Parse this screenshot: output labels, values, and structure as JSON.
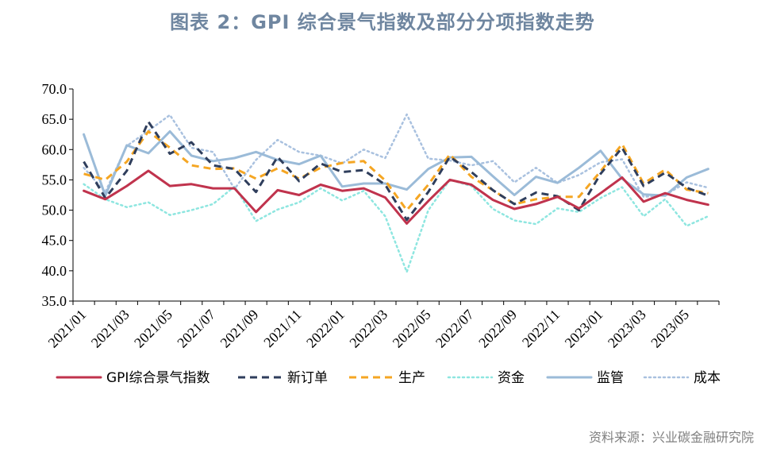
{
  "title": "图表 2：GPI 综合景气指数及部分分项指数走势",
  "source": "资料来源：兴业碳金融研究院",
  "colors": {
    "gpi": "#c0334d",
    "new_orders": "#2f3e5c",
    "production": "#f5a623",
    "capital": "#8ee6e0",
    "supervision": "#9bbbd8",
    "cost": "#a9c1df",
    "axis": "#000000",
    "title": "#6f86a0"
  },
  "chart_data": {
    "type": "line",
    "title": "图表 2：GPI 综合景气指数及部分分项指数走势",
    "xlabel": "",
    "ylabel": "",
    "ylim": [
      35.0,
      70.0
    ],
    "yticks": [
      "35.0",
      "40.0",
      "45.0",
      "50.0",
      "55.0",
      "60.0",
      "65.0",
      "70.0"
    ],
    "xtick_labels": [
      "2021/01",
      "2021/03",
      "2021/05",
      "2021/07",
      "2021/09",
      "2021/11",
      "2022/01",
      "2022/03",
      "2022/05",
      "2022/07",
      "2022/09",
      "2022/11",
      "2023/01",
      "2023/03",
      "2023/05"
    ],
    "x": [
      "2021/01",
      "2021/02",
      "2021/03",
      "2021/04",
      "2021/05",
      "2021/06",
      "2021/07",
      "2021/08",
      "2021/09",
      "2021/10",
      "2021/11",
      "2021/12",
      "2022/01",
      "2022/02",
      "2022/03",
      "2022/04",
      "2022/05",
      "2022/06",
      "2022/07",
      "2022/08",
      "2022/09",
      "2022/10",
      "2022/11",
      "2022/12",
      "2023/01",
      "2023/02",
      "2023/03",
      "2023/04",
      "2023/05",
      "2023/06"
    ],
    "series": [
      {
        "key": "gpi",
        "name": "GPI综合景气指数",
        "style": "solid",
        "values": [
          53.2,
          51.8,
          54.0,
          56.5,
          54.0,
          54.3,
          53.6,
          53.6,
          49.7,
          53.3,
          52.5,
          54.2,
          53.2,
          53.6,
          52.1,
          47.8,
          51.5,
          55.0,
          54.2,
          51.7,
          50.2,
          51.0,
          52.2,
          50.3,
          52.8,
          55.4,
          51.4,
          52.8,
          51.7,
          50.9
        ]
      },
      {
        "key": "new_orders",
        "name": "新订单",
        "style": "dash",
        "values": [
          58.0,
          52.0,
          56.5,
          64.6,
          59.3,
          61.2,
          57.4,
          56.8,
          53.0,
          58.8,
          54.8,
          57.7,
          56.3,
          56.6,
          54.2,
          48.4,
          53.0,
          58.8,
          56.3,
          53.3,
          51.0,
          52.9,
          52.3,
          50.0,
          56.0,
          60.3,
          54.0,
          56.2,
          53.7,
          52.4
        ]
      },
      {
        "key": "production",
        "name": "生产",
        "style": "dash",
        "values": [
          56.0,
          55.0,
          58.0,
          63.0,
          60.3,
          57.4,
          56.8,
          56.9,
          55.2,
          56.9,
          55.2,
          57.0,
          57.8,
          58.1,
          54.9,
          50.0,
          54.2,
          59.2,
          55.5,
          53.3,
          51.0,
          51.8,
          52.2,
          52.2,
          56.4,
          60.9,
          54.4,
          56.7,
          53.4,
          52.8
        ]
      },
      {
        "key": "capital",
        "name": "资金",
        "style": "dot",
        "values": [
          54.3,
          51.8,
          50.5,
          51.3,
          49.2,
          50.0,
          51.0,
          53.9,
          48.2,
          50.1,
          51.3,
          53.6,
          51.6,
          53.2,
          49.0,
          39.8,
          50.0,
          55.0,
          54.0,
          50.2,
          48.3,
          47.7,
          50.3,
          49.7,
          52.0,
          53.8,
          49.0,
          51.8,
          47.4,
          49.0
        ]
      },
      {
        "key": "supervision",
        "name": "监管",
        "style": "solid",
        "values": [
          62.5,
          52.4,
          60.7,
          59.4,
          63.0,
          59.0,
          58.1,
          58.6,
          59.6,
          58.3,
          57.6,
          59.0,
          53.9,
          54.4,
          54.4,
          53.4,
          56.8,
          58.7,
          58.8,
          55.6,
          52.5,
          55.5,
          54.5,
          57.0,
          59.8,
          55.2,
          52.6,
          52.4,
          55.4,
          56.8
        ]
      },
      {
        "key": "cost",
        "name": "成本",
        "style": "dot",
        "values": [
          57.0,
          53.0,
          60.6,
          63.1,
          65.7,
          60.3,
          59.6,
          53.5,
          58.3,
          61.6,
          59.6,
          59.0,
          57.7,
          60.0,
          58.6,
          65.8,
          58.5,
          58.2,
          57.4,
          58.1,
          54.6,
          57.0,
          54.5,
          55.8,
          57.9,
          58.4,
          52.2,
          52.5,
          54.6,
          53.7
        ]
      }
    ]
  }
}
